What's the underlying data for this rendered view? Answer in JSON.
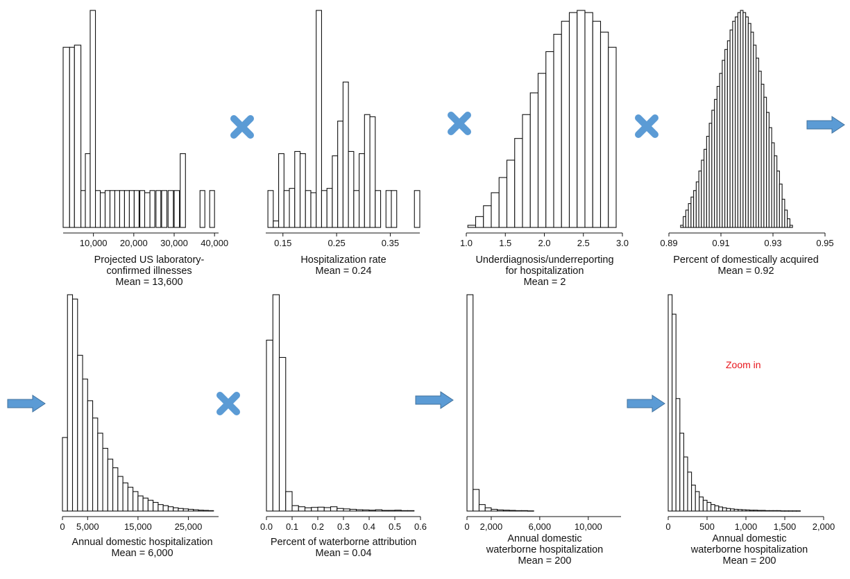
{
  "colors": {
    "bar_fill": "#ffffff",
    "bar_stroke": "#111111",
    "operator": "#5b9bd5",
    "zoom_note": "#e8141b"
  },
  "operators": [
    {
      "type": "times",
      "icon": "multiply-icon"
    },
    {
      "type": "times",
      "icon": "multiply-icon"
    },
    {
      "type": "times",
      "icon": "multiply-icon"
    },
    {
      "type": "arrow",
      "icon": "arrow-right-icon"
    },
    {
      "type": "arrow",
      "icon": "arrow-right-icon"
    },
    {
      "type": "times",
      "icon": "multiply-icon"
    },
    {
      "type": "arrow",
      "icon": "arrow-right-icon"
    },
    {
      "type": "arrow",
      "icon": "arrow-right-icon"
    }
  ],
  "zoom_note": "Zoom in",
  "chart_data": [
    {
      "type": "bar",
      "caption": [
        "Projected US laboratory-",
        "confirmed illnesses",
        "Mean = 13,600"
      ],
      "xlim": [
        2500,
        41000
      ],
      "ticks": [
        {
          "v": 10000,
          "label": "10,000"
        },
        {
          "v": 20000,
          "label": "20,000"
        },
        {
          "v": 30000,
          "label": "30,000"
        },
        {
          "v": 40000,
          "label": "40,000"
        }
      ],
      "bins": [
        [
          2500,
          4100,
          0.83
        ],
        [
          4100,
          5300,
          0.83
        ],
        [
          5300,
          6900,
          0.84
        ],
        [
          6900,
          8000,
          0.17
        ],
        [
          8000,
          9200,
          0.34
        ],
        [
          9200,
          10500,
          1.0
        ],
        [
          10500,
          11700,
          0.17
        ],
        [
          11700,
          12900,
          0.16
        ],
        [
          12900,
          14100,
          0.17
        ],
        [
          14100,
          15300,
          0.17
        ],
        [
          15300,
          16500,
          0.17
        ],
        [
          16500,
          17700,
          0.17
        ],
        [
          17700,
          18900,
          0.17
        ],
        [
          18900,
          20100,
          0.17
        ],
        [
          20100,
          21300,
          0.17
        ],
        [
          21500,
          22700,
          0.17
        ],
        [
          22700,
          24000,
          0.16
        ],
        [
          24000,
          25200,
          0.17
        ],
        [
          25500,
          26700,
          0.17
        ],
        [
          26900,
          28200,
          0.17
        ],
        [
          28500,
          29800,
          0.17
        ],
        [
          30000,
          31300,
          0.17
        ],
        [
          31500,
          32800,
          0.34
        ],
        [
          36400,
          37600,
          0.17
        ],
        [
          38800,
          40000,
          0.17
        ]
      ]
    },
    {
      "type": "bar",
      "caption": [
        "Hospitalization rate",
        "Mean = 0.24"
      ],
      "xlim": [
        0.118,
        0.405
      ],
      "ticks": [
        {
          "v": 0.15,
          "label": "0.15"
        },
        {
          "v": 0.25,
          "label": "0.25"
        },
        {
          "v": 0.35,
          "label": "0.35"
        }
      ],
      "bins": [
        [
          0.122,
          0.132,
          0.17
        ],
        [
          0.132,
          0.142,
          0.03
        ],
        [
          0.142,
          0.152,
          0.34
        ],
        [
          0.152,
          0.162,
          0.17
        ],
        [
          0.162,
          0.172,
          0.18
        ],
        [
          0.172,
          0.182,
          0.35
        ],
        [
          0.182,
          0.192,
          0.34
        ],
        [
          0.192,
          0.202,
          0.17
        ],
        [
          0.202,
          0.212,
          0.16
        ],
        [
          0.212,
          0.222,
          1.0
        ],
        [
          0.222,
          0.232,
          0.17
        ],
        [
          0.232,
          0.242,
          0.18
        ],
        [
          0.242,
          0.252,
          0.33
        ],
        [
          0.252,
          0.262,
          0.49
        ],
        [
          0.262,
          0.272,
          0.67
        ],
        [
          0.272,
          0.282,
          0.35
        ],
        [
          0.282,
          0.292,
          0.17
        ],
        [
          0.292,
          0.302,
          0.34
        ],
        [
          0.302,
          0.312,
          0.52
        ],
        [
          0.312,
          0.322,
          0.51
        ],
        [
          0.322,
          0.332,
          0.17
        ],
        [
          0.342,
          0.352,
          0.17
        ],
        [
          0.352,
          0.362,
          0.17
        ],
        [
          0.395,
          0.405,
          0.17
        ]
      ]
    },
    {
      "type": "bar",
      "caption": [
        "Underdiagnosis/underreporting",
        "for hospitalization",
        "Mean = 2"
      ],
      "xlim": [
        1.0,
        3.0
      ],
      "ticks": [
        {
          "v": 1.0,
          "label": "1.0"
        },
        {
          "v": 1.5,
          "label": "1.5"
        },
        {
          "v": 2.0,
          "label": "2.0"
        },
        {
          "v": 2.5,
          "label": "2.5"
        },
        {
          "v": 3.0,
          "label": "3.0"
        }
      ],
      "bins": [
        [
          1.02,
          1.12,
          0.01
        ],
        [
          1.12,
          1.22,
          0.05
        ],
        [
          1.22,
          1.32,
          0.1
        ],
        [
          1.32,
          1.42,
          0.16
        ],
        [
          1.42,
          1.52,
          0.23
        ],
        [
          1.52,
          1.62,
          0.31
        ],
        [
          1.62,
          1.72,
          0.41
        ],
        [
          1.72,
          1.82,
          0.52
        ],
        [
          1.82,
          1.92,
          0.62
        ],
        [
          1.92,
          2.02,
          0.71
        ],
        [
          2.02,
          2.12,
          0.81
        ],
        [
          2.12,
          2.22,
          0.89
        ],
        [
          2.22,
          2.32,
          0.95
        ],
        [
          2.32,
          2.42,
          0.99
        ],
        [
          2.42,
          2.52,
          1.0
        ],
        [
          2.52,
          2.62,
          0.99
        ],
        [
          2.62,
          2.72,
          0.95
        ],
        [
          2.72,
          2.82,
          0.9
        ],
        [
          2.82,
          2.92,
          0.83
        ]
      ]
    },
    {
      "type": "bar",
      "caption": [
        "Percent of domestically acquired",
        "Mean = 0.92"
      ],
      "xlim": [
        0.89,
        0.95
      ],
      "ticks": [
        {
          "v": 0.89,
          "label": "0.89"
        },
        {
          "v": 0.91,
          "label": "0.91"
        },
        {
          "v": 0.93,
          "label": "0.93"
        },
        {
          "v": 0.95,
          "label": "0.95"
        }
      ],
      "bins": [
        [
          0.8945,
          0.8955,
          0.01
        ],
        [
          0.8955,
          0.8965,
          0.05
        ],
        [
          0.8965,
          0.8975,
          0.08
        ],
        [
          0.8975,
          0.8985,
          0.11
        ],
        [
          0.8985,
          0.8995,
          0.14
        ],
        [
          0.8995,
          0.9005,
          0.17
        ],
        [
          0.9005,
          0.9015,
          0.21
        ],
        [
          0.9015,
          0.9025,
          0.26
        ],
        [
          0.9025,
          0.9035,
          0.31
        ],
        [
          0.9035,
          0.9045,
          0.36
        ],
        [
          0.9045,
          0.9055,
          0.42
        ],
        [
          0.9055,
          0.9065,
          0.48
        ],
        [
          0.9065,
          0.9075,
          0.54
        ],
        [
          0.9075,
          0.9085,
          0.59
        ],
        [
          0.9085,
          0.9095,
          0.65
        ],
        [
          0.9095,
          0.9105,
          0.71
        ],
        [
          0.9105,
          0.9115,
          0.77
        ],
        [
          0.9115,
          0.9125,
          0.82
        ],
        [
          0.9125,
          0.9135,
          0.86
        ],
        [
          0.9135,
          0.9145,
          0.91
        ],
        [
          0.9145,
          0.9155,
          0.95
        ],
        [
          0.9155,
          0.9165,
          0.97
        ],
        [
          0.9165,
          0.9175,
          0.99
        ],
        [
          0.9175,
          0.9185,
          1.0
        ],
        [
          0.9185,
          0.9195,
          0.99
        ],
        [
          0.9195,
          0.9205,
          0.97
        ],
        [
          0.9205,
          0.9215,
          0.94
        ],
        [
          0.9215,
          0.9225,
          0.9
        ],
        [
          0.9225,
          0.9235,
          0.84
        ],
        [
          0.9235,
          0.9245,
          0.78
        ],
        [
          0.9245,
          0.9255,
          0.72
        ],
        [
          0.9255,
          0.9265,
          0.66
        ],
        [
          0.9265,
          0.9275,
          0.6
        ],
        [
          0.9275,
          0.9285,
          0.53
        ],
        [
          0.9285,
          0.9295,
          0.46
        ],
        [
          0.9295,
          0.9305,
          0.39
        ],
        [
          0.9305,
          0.9315,
          0.33
        ],
        [
          0.9315,
          0.9325,
          0.26
        ],
        [
          0.9325,
          0.9335,
          0.2
        ],
        [
          0.9335,
          0.9345,
          0.13
        ],
        [
          0.9345,
          0.9355,
          0.08
        ],
        [
          0.9355,
          0.9365,
          0.04
        ],
        [
          0.9365,
          0.9375,
          0.01
        ]
      ]
    },
    {
      "type": "bar",
      "caption": [
        "Annual domestic hospitalization",
        "Mean = 6,000"
      ],
      "xlim": [
        0,
        31000
      ],
      "ticks": [
        {
          "v": 0,
          "label": "0"
        },
        {
          "v": 5000,
          "label": "5,000"
        },
        {
          "v": 15000,
          "label": "15,000"
        },
        {
          "v": 25000,
          "label": "25,000"
        }
      ],
      "bins": [
        [
          0,
          1000,
          0.34
        ],
        [
          1000,
          2000,
          1.0
        ],
        [
          2000,
          3000,
          0.98
        ],
        [
          3000,
          4000,
          0.72
        ],
        [
          4000,
          5000,
          0.61
        ],
        [
          5000,
          6000,
          0.51
        ],
        [
          6000,
          7000,
          0.43
        ],
        [
          7000,
          8000,
          0.36
        ],
        [
          8000,
          9000,
          0.29
        ],
        [
          9000,
          10000,
          0.24
        ],
        [
          10000,
          11000,
          0.2
        ],
        [
          11000,
          12000,
          0.16
        ],
        [
          12000,
          13000,
          0.13
        ],
        [
          13000,
          14000,
          0.11
        ],
        [
          14000,
          15000,
          0.09
        ],
        [
          15000,
          16000,
          0.07
        ],
        [
          16000,
          17000,
          0.06
        ],
        [
          17000,
          18000,
          0.05
        ],
        [
          18000,
          19000,
          0.04
        ],
        [
          19000,
          20000,
          0.03
        ],
        [
          20000,
          21000,
          0.025
        ],
        [
          21000,
          22000,
          0.02
        ],
        [
          22000,
          23000,
          0.015
        ],
        [
          23000,
          24000,
          0.012
        ],
        [
          24000,
          25000,
          0.01
        ],
        [
          25000,
          26000,
          0.008
        ],
        [
          26000,
          27000,
          0.006
        ],
        [
          27000,
          28000,
          0.004
        ],
        [
          28000,
          29000,
          0.003
        ],
        [
          29000,
          30000,
          0.002
        ]
      ]
    },
    {
      "type": "bar",
      "caption": [
        "Percent of waterborne attribution",
        "Mean = 0.04"
      ],
      "xlim": [
        0,
        0.6
      ],
      "ticks": [
        {
          "v": 0.0,
          "label": "0.0"
        },
        {
          "v": 0.1,
          "label": "0.1"
        },
        {
          "v": 0.2,
          "label": "0.2"
        },
        {
          "v": 0.3,
          "label": "0.3"
        },
        {
          "v": 0.4,
          "label": "0.4"
        },
        {
          "v": 0.5,
          "label": "0.5"
        },
        {
          "v": 0.6,
          "label": "0.6"
        }
      ],
      "bins": [
        [
          0.0,
          0.025,
          0.79
        ],
        [
          0.025,
          0.05,
          1.0
        ],
        [
          0.05,
          0.075,
          0.71
        ],
        [
          0.075,
          0.1,
          0.09
        ],
        [
          0.1,
          0.125,
          0.025
        ],
        [
          0.125,
          0.15,
          0.02
        ],
        [
          0.15,
          0.175,
          0.015
        ],
        [
          0.175,
          0.2,
          0.017
        ],
        [
          0.2,
          0.225,
          0.018
        ],
        [
          0.225,
          0.25,
          0.016
        ],
        [
          0.25,
          0.275,
          0.02
        ],
        [
          0.275,
          0.3,
          0.012
        ],
        [
          0.3,
          0.325,
          0.01
        ],
        [
          0.325,
          0.35,
          0.008
        ],
        [
          0.35,
          0.375,
          0.006
        ],
        [
          0.375,
          0.4,
          0.005
        ],
        [
          0.4,
          0.425,
          0.004
        ],
        [
          0.425,
          0.45,
          0.006
        ],
        [
          0.45,
          0.475,
          0.003
        ],
        [
          0.475,
          0.5,
          0.003
        ],
        [
          0.5,
          0.525,
          0.004
        ],
        [
          0.525,
          0.55,
          0.002
        ],
        [
          0.55,
          0.575,
          0.002
        ]
      ]
    },
    {
      "type": "bar",
      "caption": [
        "Annual domestic",
        "waterborne hospitalization",
        "Mean = 200"
      ],
      "xlim": [
        0,
        12700
      ],
      "ticks": [
        {
          "v": 0,
          "label": "0"
        },
        {
          "v": 2000,
          "label": "2,000"
        },
        {
          "v": 6000,
          "label": "6,000"
        },
        {
          "v": 10000,
          "label": "10,000"
        }
      ],
      "bins": [
        [
          0,
          500,
          1.0
        ],
        [
          500,
          1000,
          0.1
        ],
        [
          1000,
          1500,
          0.03
        ],
        [
          1500,
          2000,
          0.015
        ],
        [
          2000,
          2500,
          0.008
        ],
        [
          2500,
          3000,
          0.005
        ],
        [
          3000,
          3500,
          0.004
        ],
        [
          3500,
          4000,
          0.003
        ],
        [
          4000,
          4500,
          0.002
        ],
        [
          4500,
          5000,
          0.002
        ],
        [
          5000,
          5500,
          0.001
        ]
      ]
    },
    {
      "type": "bar",
      "caption": [
        "Annual domestic",
        "waterborne hospitalization",
        "Mean = 200"
      ],
      "xlim": [
        0,
        2000
      ],
      "ticks": [
        {
          "v": 0,
          "label": "0"
        },
        {
          "v": 500,
          "label": "500"
        },
        {
          "v": 1000,
          "label": "1,000"
        },
        {
          "v": 1500,
          "label": "1,500"
        },
        {
          "v": 2000,
          "label": "2,000"
        }
      ],
      "bins": [
        [
          0,
          50,
          1.0
        ],
        [
          50,
          100,
          0.91
        ],
        [
          100,
          150,
          0.52
        ],
        [
          150,
          200,
          0.36
        ],
        [
          200,
          250,
          0.25
        ],
        [
          250,
          300,
          0.18
        ],
        [
          300,
          350,
          0.12
        ],
        [
          350,
          400,
          0.09
        ],
        [
          400,
          450,
          0.065
        ],
        [
          450,
          500,
          0.05
        ],
        [
          500,
          550,
          0.04
        ],
        [
          550,
          600,
          0.03
        ],
        [
          600,
          650,
          0.024
        ],
        [
          650,
          700,
          0.019
        ],
        [
          700,
          750,
          0.015
        ],
        [
          750,
          800,
          0.012
        ],
        [
          800,
          850,
          0.01
        ],
        [
          850,
          900,
          0.008
        ],
        [
          900,
          950,
          0.007
        ],
        [
          950,
          1000,
          0.006
        ],
        [
          1000,
          1050,
          0.005
        ],
        [
          1050,
          1100,
          0.004
        ],
        [
          1100,
          1150,
          0.004
        ],
        [
          1150,
          1200,
          0.003
        ],
        [
          1200,
          1250,
          0.003
        ],
        [
          1250,
          1300,
          0.002
        ],
        [
          1300,
          1350,
          0.002
        ],
        [
          1350,
          1400,
          0.002
        ],
        [
          1400,
          1450,
          0.002
        ],
        [
          1450,
          1500,
          0.001
        ],
        [
          1500,
          1550,
          0.001
        ],
        [
          1550,
          1600,
          0.001
        ],
        [
          1600,
          1650,
          0.001
        ],
        [
          1650,
          1700,
          0.001
        ]
      ]
    }
  ]
}
